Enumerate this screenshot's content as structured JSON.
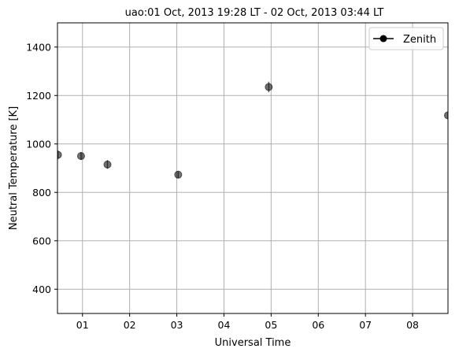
{
  "chart_data": {
    "type": "scatter",
    "title": "uao:01 Oct, 2013 19:28 LT - 02 Oct, 2013 03:44 LT",
    "xlabel": "Universal Time",
    "ylabel": "Neutral Temperature [K]",
    "xlim": [
      0.47,
      8.75
    ],
    "ylim": [
      300,
      1500
    ],
    "x_ticks": [
      1,
      2,
      3,
      4,
      5,
      6,
      7,
      8
    ],
    "x_tick_labels": [
      "01",
      "02",
      "03",
      "04",
      "05",
      "06",
      "07",
      "08"
    ],
    "y_ticks": [
      400,
      600,
      800,
      1000,
      1200,
      1400
    ],
    "y_tick_labels": [
      "400",
      "600",
      "800",
      "1000",
      "1200",
      "1400"
    ],
    "grid": true,
    "legend_position": "top-right",
    "series": [
      {
        "name": "Zenith",
        "color": "#000000",
        "marker": "circle",
        "x": [
          0.48,
          0.97,
          1.53,
          3.03,
          4.95,
          8.75
        ],
        "y": [
          955,
          950,
          915,
          873,
          1235,
          1118
        ],
        "error": [
          18,
          16,
          18,
          14,
          22,
          16
        ]
      }
    ]
  }
}
